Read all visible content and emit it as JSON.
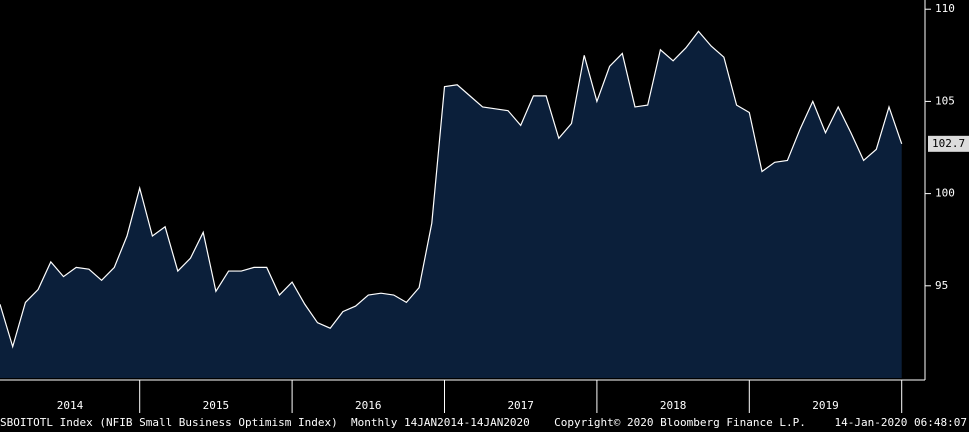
{
  "chart_data": {
    "type": "area",
    "categories": [
      null,
      null,
      null,
      null,
      null,
      null,
      null,
      null,
      null,
      null,
      null,
      null,
      null,
      null,
      null,
      null,
      null,
      null,
      null,
      null,
      null,
      null,
      null,
      null,
      null,
      null,
      null,
      null,
      null,
      null,
      null,
      null,
      null,
      null,
      null,
      null,
      null,
      null,
      null,
      null,
      null,
      null,
      null,
      null,
      null,
      null,
      null,
      null,
      null,
      null,
      null,
      null,
      null,
      null,
      null,
      null,
      null,
      null,
      null,
      null,
      null,
      null,
      null,
      null,
      null,
      null,
      null,
      null,
      null,
      null,
      null,
      null
    ],
    "year_labels": [
      "2014",
      "2015",
      "2016",
      "2017",
      "2018",
      "2019"
    ],
    "series": [
      {
        "name": "SBOITOTL Index",
        "color": "#ffffff",
        "fill": "#0b1f3a",
        "values": [
          94.0,
          91.7,
          94.1,
          94.8,
          96.3,
          95.5,
          96.0,
          95.9,
          95.3,
          96.0,
          97.7,
          100.3,
          97.7,
          98.2,
          95.8,
          96.5,
          97.9,
          94.7,
          95.8,
          95.8,
          96.0,
          96.0,
          94.5,
          95.2,
          94.0,
          93.0,
          92.7,
          93.6,
          93.9,
          94.5,
          94.6,
          94.5,
          94.1,
          94.9,
          98.4,
          105.8,
          105.9,
          105.3,
          104.7,
          104.6,
          104.5,
          103.7,
          105.3,
          105.3,
          103.0,
          103.8,
          107.5,
          105.0,
          106.9,
          107.6,
          104.7,
          104.8,
          107.8,
          107.2,
          107.9,
          108.8,
          108.0,
          107.4,
          104.8,
          104.4,
          101.2,
          101.7,
          101.8,
          103.5,
          105.0,
          103.3,
          104.7,
          103.3,
          101.8,
          102.4,
          104.7,
          102.7
        ]
      }
    ],
    "ylim": [
      90,
      110.5
    ],
    "yticks": [
      95,
      100,
      105,
      110
    ],
    "footer": {
      "left": "SBOITOTL Index (NFIB Small Business Optimism Index)  Monthly 14JAN2014-14JAN2020",
      "center": "Copyright© 2020 Bloomberg Finance L.P.",
      "right": "14-Jan-2020 06:48:07"
    }
  }
}
